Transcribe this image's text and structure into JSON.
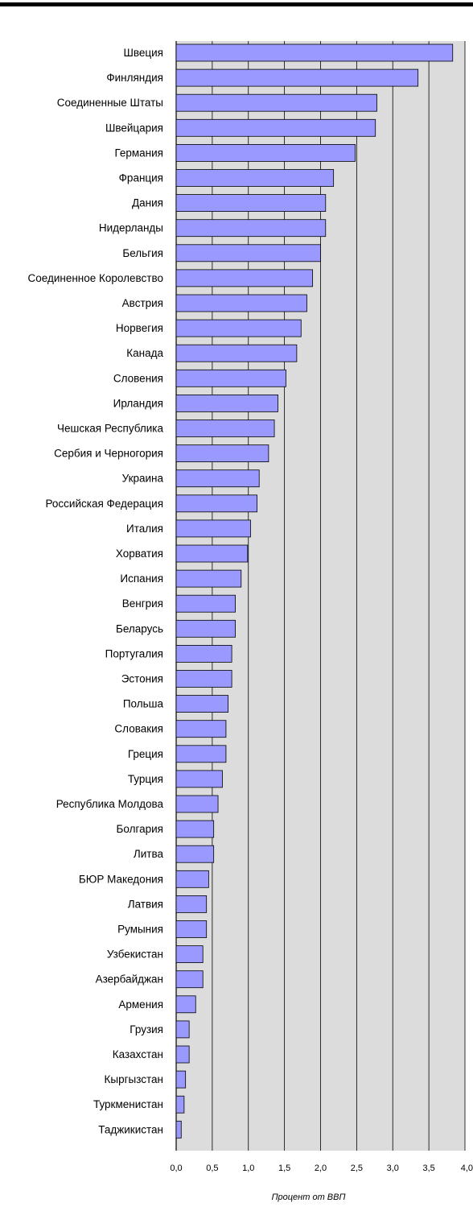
{
  "chart_data": {
    "type": "bar",
    "orientation": "horizontal",
    "categories": [
      "Швеция",
      "Финляндия",
      "Соединенные Штаты",
      "Швейцария",
      "Германия",
      "Франция",
      "Дания",
      "Нидерланды",
      "Бельгия",
      "Соединенное Королевство",
      "Австрия",
      "Норвегия",
      "Канада",
      "Словения",
      "Ирландия",
      "Чешская Республика",
      "Сербия и Черногория",
      "Украина",
      "Российская Федерация",
      "Италия",
      "Хорватия",
      "Испания",
      "Венгрия",
      "Беларусь",
      "Португалия",
      "Эстония",
      "Польша",
      "Словакия",
      "Греция",
      "Турция",
      "Республика Молдова",
      "Болгария",
      "Литва",
      "БЮР Македония",
      "Латвия",
      "Румыния",
      "Узбекистан",
      "Азербайджан",
      "Армения",
      "Грузия",
      "Казахстан",
      "Кыргызстан",
      "Туркменистан",
      "Таджикистан"
    ],
    "values": [
      3.83,
      3.35,
      2.78,
      2.76,
      2.48,
      2.18,
      2.07,
      2.07,
      2.0,
      1.89,
      1.81,
      1.73,
      1.67,
      1.52,
      1.41,
      1.36,
      1.28,
      1.15,
      1.12,
      1.03,
      0.99,
      0.9,
      0.82,
      0.82,
      0.77,
      0.77,
      0.72,
      0.69,
      0.69,
      0.64,
      0.58,
      0.52,
      0.52,
      0.45,
      0.42,
      0.42,
      0.37,
      0.37,
      0.27,
      0.18,
      0.18,
      0.13,
      0.11,
      0.07
    ],
    "xlim": [
      0,
      4.0
    ],
    "xticks": [
      "0,0",
      "0,5",
      "1,0",
      "1,5",
      "2,0",
      "2,5",
      "3,0",
      "3,5",
      "4,0"
    ],
    "xlabel": "Процент от ВВП",
    "title": "",
    "grid": true,
    "colors": {
      "bar_fill": "#9999ff",
      "bar_stroke": "#000000",
      "plot_background": "#dcdcdc",
      "gridline": "#000000"
    }
  }
}
